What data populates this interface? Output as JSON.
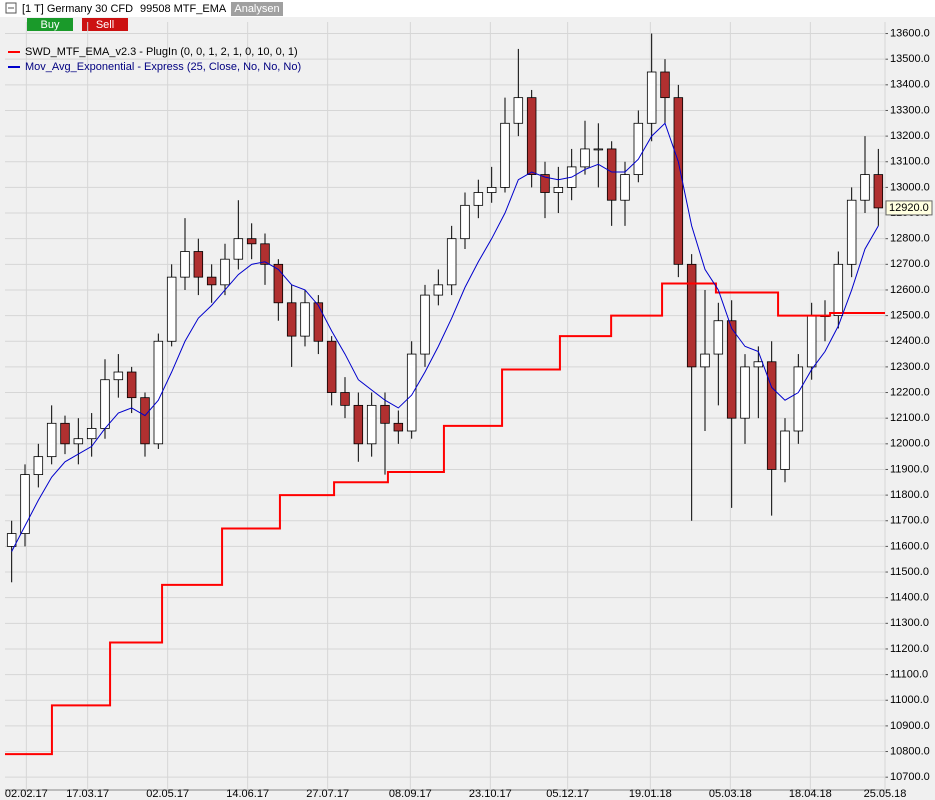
{
  "header": {
    "instrument": "[1 T] Germany 30 CFD",
    "account": "99508 MTF_EMA",
    "analysis_button": "Analysen",
    "buy_button": "Buy",
    "sell_button": "Sell"
  },
  "chart_data": {
    "type": "candlestick",
    "x": [
      2.5,
      7.5,
      12.5,
      17.5,
      22.5,
      27.5,
      32.5,
      37.5,
      42.5,
      47.5,
      52.5,
      57.5,
      62.5,
      67.5,
      72.5,
      77.5,
      82.5,
      87.5,
      92.5,
      97.5,
      102.5,
      107.5,
      112.5,
      117.5,
      122.5,
      127.5,
      132.5,
      137.5,
      142.5,
      147.5,
      152.5,
      157.5,
      162.5,
      167.5,
      172.5,
      177.5,
      182.5,
      187.5,
      192.5,
      197.5,
      202.5,
      207.5,
      212.5,
      217.5,
      222.5,
      227.5,
      232.5,
      237.5,
      242.5,
      247.5,
      252.5,
      257.5,
      262.5,
      267.5,
      272.5,
      277.5,
      282.5,
      287.5,
      292.5,
      297.5,
      302.5,
      307.5,
      312.5,
      317.5,
      322.5,
      327.5
    ],
    "open": [
      11600,
      11650,
      11880,
      11950,
      12080,
      12000,
      12020,
      12060,
      12250,
      12280,
      12180,
      12000,
      12400,
      12650,
      12750,
      12650,
      12620,
      12720,
      12800,
      12780,
      12700,
      12550,
      12420,
      12550,
      12400,
      12200,
      12150,
      12000,
      12150,
      12080,
      12050,
      12350,
      12580,
      12620,
      12800,
      12930,
      12980,
      13000,
      13250,
      13350,
      13050,
      12980,
      13000,
      13080,
      13150,
      13150,
      12950,
      13050,
      13250,
      13450,
      13350,
      12700,
      12300,
      12350,
      12480,
      12100,
      12300,
      12320,
      11900,
      12050,
      12300,
      12500,
      12500,
      12700,
      12950,
      13050
    ],
    "high": [
      11700,
      11920,
      12000,
      12150,
      12110,
      12100,
      12120,
      12330,
      12350,
      12300,
      12200,
      12430,
      12700,
      12880,
      12800,
      12700,
      12780,
      12950,
      12860,
      12820,
      12720,
      12620,
      12600,
      12580,
      12420,
      12260,
      12200,
      12200,
      12200,
      12130,
      12400,
      12620,
      12680,
      12850,
      12980,
      13030,
      13080,
      13350,
      13540,
      13380,
      13100,
      13080,
      13150,
      13260,
      13250,
      13180,
      13100,
      13300,
      13600,
      13500,
      13400,
      12740,
      12600,
      12550,
      12560,
      12350,
      12380,
      12400,
      12100,
      12350,
      12550,
      12560,
      12750,
      13000,
      13200,
      13150
    ],
    "low": [
      11460,
      11600,
      11830,
      11920,
      11960,
      11920,
      11950,
      12020,
      12180,
      12120,
      11950,
      11980,
      12380,
      12600,
      12580,
      12550,
      12580,
      12680,
      12720,
      12620,
      12480,
      12300,
      12380,
      12350,
      12150,
      12100,
      11930,
      11950,
      11880,
      12000,
      12020,
      12300,
      12540,
      12580,
      12760,
      12880,
      12940,
      12980,
      13200,
      13000,
      12880,
      12900,
      12950,
      13050,
      13000,
      12850,
      12850,
      13020,
      13180,
      13250,
      12650,
      11700,
      12050,
      12150,
      11750,
      12000,
      12100,
      11720,
      11850,
      12000,
      12250,
      12400,
      12450,
      12650,
      12900,
      12850
    ],
    "close": [
      11650,
      11880,
      11950,
      12080,
      12000,
      12020,
      12060,
      12250,
      12280,
      12180,
      12000,
      12400,
      12650,
      12750,
      12650,
      12620,
      12720,
      12800,
      12780,
      12700,
      12550,
      12420,
      12550,
      12400,
      12200,
      12150,
      12000,
      12150,
      12080,
      12050,
      12350,
      12580,
      12620,
      12800,
      12930,
      12980,
      13000,
      13250,
      13350,
      13050,
      12980,
      13000,
      13080,
      13150,
      13150,
      12950,
      13050,
      13250,
      13450,
      13350,
      12700,
      12300,
      12350,
      12480,
      12100,
      12300,
      12320,
      11900,
      12050,
      12300,
      12500,
      12500,
      12700,
      12950,
      13050,
      12920
    ],
    "up_color": "#ffffff",
    "down_color": "#b03030",
    "series": [
      {
        "name": "SWD_MTF_EMA_v2.3 - PlugIn  (0, 0, 1, 2, 1, 0, 10, 0, 1)",
        "color": "#ff0000",
        "style": "step",
        "x": [
          0,
          17.6,
          39.4,
          58.9,
          81.4,
          103.1,
          123.4,
          143.6,
          164.6,
          186.4,
          208.1,
          227.3,
          246.4,
          266.6,
          289.9,
          309.4
        ],
        "values": [
          10790,
          10980,
          11225,
          11450,
          11670,
          11800,
          11850,
          11890,
          12070,
          12290,
          12420,
          12500,
          12625,
          12590,
          12500,
          12510
        ]
      },
      {
        "name": "Mov_Avg_Exponential - Express  (25, Close, No, No, No)",
        "color": "#0000cc",
        "style": "line",
        "x": [
          2.5,
          7.5,
          12.5,
          17.5,
          22.5,
          27.5,
          32.5,
          37.5,
          42.5,
          47.5,
          52.5,
          57.5,
          62.5,
          67.5,
          72.5,
          77.5,
          82.5,
          87.5,
          92.5,
          97.5,
          102.5,
          107.5,
          112.5,
          117.5,
          122.5,
          127.5,
          132.5,
          137.5,
          142.5,
          147.5,
          152.5,
          157.5,
          162.5,
          167.5,
          172.5,
          177.5,
          182.5,
          187.5,
          192.5,
          197.5,
          202.5,
          207.5,
          212.5,
          217.5,
          222.5,
          227.5,
          232.5,
          237.5,
          242.5,
          247.5,
          252.5,
          257.5,
          262.5,
          267.5,
          272.5,
          277.5,
          282.5,
          287.5,
          292.5,
          297.5,
          302.5,
          307.5,
          312.5,
          317.5,
          322.5,
          327.5
        ],
        "values": [
          11580,
          11680,
          11780,
          11870,
          11930,
          11960,
          11990,
          12060,
          12120,
          12140,
          12110,
          12170,
          12280,
          12400,
          12490,
          12540,
          12600,
          12660,
          12700,
          12710,
          12680,
          12620,
          12600,
          12540,
          12440,
          12350,
          12250,
          12210,
          12170,
          12140,
          12190,
          12280,
          12380,
          12490,
          12610,
          12710,
          12800,
          12900,
          13030,
          13060,
          13040,
          13030,
          13040,
          13070,
          13090,
          13060,
          13060,
          13110,
          13200,
          13250,
          13100,
          12850,
          12680,
          12600,
          12450,
          12380,
          12360,
          12220,
          12170,
          12200,
          12290,
          12360,
          12460,
          12600,
          12760,
          12850
        ]
      }
    ],
    "last_price": {
      "value": 12920,
      "label": "12920.0"
    },
    "xlim": [
      0,
      330
    ],
    "xticks": [
      {
        "value": 8,
        "label": "02.02.17"
      },
      {
        "value": 31,
        "label": "17.03.17"
      },
      {
        "value": 61,
        "label": "02.05.17"
      },
      {
        "value": 91,
        "label": "14.06.17"
      },
      {
        "value": 121,
        "label": "27.07.17"
      },
      {
        "value": 152,
        "label": "08.09.17"
      },
      {
        "value": 182,
        "label": "23.10.17"
      },
      {
        "value": 211,
        "label": "05.12.17"
      },
      {
        "value": 242,
        "label": "19.01.18"
      },
      {
        "value": 272,
        "label": "05.03.18"
      },
      {
        "value": 302,
        "label": "18.04.18"
      },
      {
        "value": 330,
        "label": "25.05.18"
      }
    ],
    "ylim": [
      10650,
      13645
    ],
    "yticks": [
      {
        "value": 10700,
        "label": "10700.0"
      },
      {
        "value": 10800,
        "label": "10800.0"
      },
      {
        "value": 10900,
        "label": "10900.0"
      },
      {
        "value": 11000,
        "label": "11000.0"
      },
      {
        "value": 11100,
        "label": "11100.0"
      },
      {
        "value": 11200,
        "label": "11200.0"
      },
      {
        "value": 11300,
        "label": "11300.0"
      },
      {
        "value": 11400,
        "label": "11400.0"
      },
      {
        "value": 11500,
        "label": "11500.0"
      },
      {
        "value": 11600,
        "label": "11600.0"
      },
      {
        "value": 11700,
        "label": "11700.0"
      },
      {
        "value": 11800,
        "label": "11800.0"
      },
      {
        "value": 11900,
        "label": "11900.0"
      },
      {
        "value": 12000,
        "label": "12000.0"
      },
      {
        "value": 12100,
        "label": "12100.0"
      },
      {
        "value": 12200,
        "label": "12200.0"
      },
      {
        "value": 12300,
        "label": "12300.0"
      },
      {
        "value": 12400,
        "label": "12400.0"
      },
      {
        "value": 12500,
        "label": "12500.0"
      },
      {
        "value": 12600,
        "label": "12600.0"
      },
      {
        "value": 12700,
        "label": "12700.0"
      },
      {
        "value": 12800,
        "label": "12800.0"
      },
      {
        "value": 12900,
        "label": "12900.0"
      },
      {
        "value": 13000,
        "label": "13000.0"
      },
      {
        "value": 13100,
        "label": "13100.0"
      },
      {
        "value": 13200,
        "label": "13200.0"
      },
      {
        "value": 13300,
        "label": "13300.0"
      },
      {
        "value": 13400,
        "label": "13400.0"
      },
      {
        "value": 13500,
        "label": "13500.0"
      },
      {
        "value": 13600,
        "label": "13600.0"
      }
    ],
    "grid": true
  }
}
